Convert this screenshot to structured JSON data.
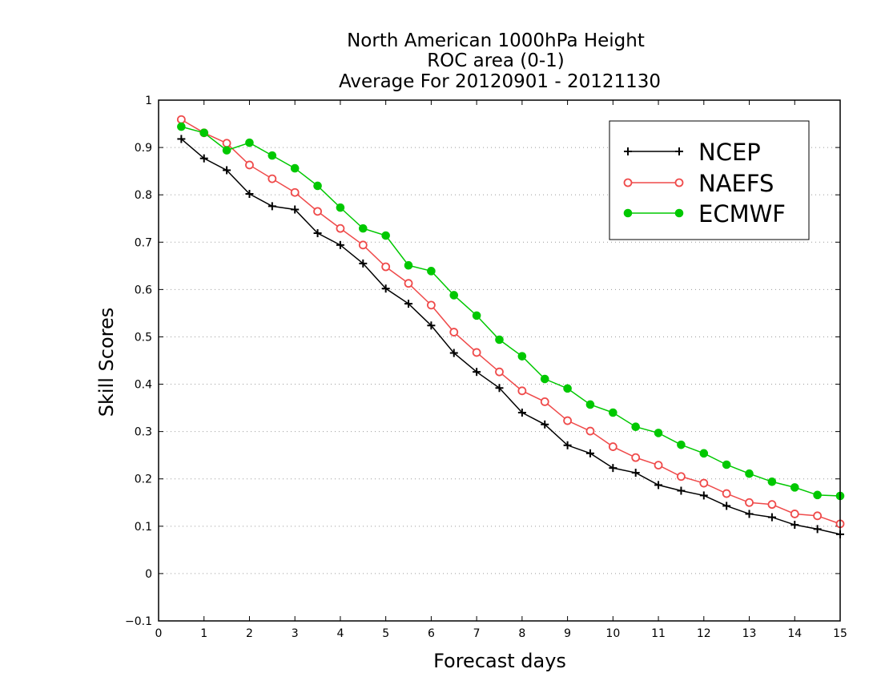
{
  "chart_data": {
    "type": "line",
    "title_lines": [
      "North American 1000hPa Height",
      "ROC area (0-1)",
      "Average For 20120901 - 20121130"
    ],
    "xlabel": "Forecast days",
    "ylabel": "Skill Scores",
    "xlim": [
      0,
      15
    ],
    "ylim": [
      -0.1,
      1
    ],
    "x_ticks": [
      0,
      1,
      2,
      3,
      4,
      5,
      6,
      7,
      8,
      9,
      10,
      11,
      12,
      13,
      14,
      15
    ],
    "y_ticks": [
      -0.1,
      0,
      0.1,
      0.2,
      0.3,
      0.4,
      0.5,
      0.6,
      0.7,
      0.8,
      0.9,
      1
    ],
    "x_tick_labels": [
      "0",
      "1",
      "2",
      "3",
      "4",
      "5",
      "6",
      "7",
      "8",
      "9",
      "10",
      "11",
      "12",
      "13",
      "14",
      "15"
    ],
    "y_tick_labels": [
      "−0.1",
      "0",
      "0.1",
      "0.2",
      "0.3",
      "0.4",
      "0.5",
      "0.6",
      "0.7",
      "0.8",
      "0.9",
      "1"
    ],
    "grid": "horizontal-dotted",
    "legend_position": "top-right",
    "x": [
      0.5,
      1,
      1.5,
      2,
      2.5,
      3,
      3.5,
      4,
      4.5,
      5,
      5.5,
      6,
      6.5,
      7,
      7.5,
      8,
      8.5,
      9,
      9.5,
      10,
      10.5,
      11,
      11.5,
      12,
      12.5,
      13,
      13.5,
      14,
      14.5,
      15
    ],
    "series": [
      {
        "name": "NCEP",
        "color": "#000000",
        "marker": "plus",
        "values": [
          0.918,
          0.877,
          0.852,
          0.802,
          0.776,
          0.769,
          0.719,
          0.694,
          0.655,
          0.602,
          0.57,
          0.524,
          0.466,
          0.426,
          0.392,
          0.34,
          0.315,
          0.271,
          0.254,
          0.223,
          0.213,
          0.187,
          0.175,
          0.165,
          0.143,
          0.126,
          0.119,
          0.103,
          0.094,
          0.083
        ]
      },
      {
        "name": "NAEFS",
        "color": "#ef4a4a",
        "marker": "open-circle",
        "values": [
          0.959,
          0.931,
          0.909,
          0.863,
          0.834,
          0.805,
          0.765,
          0.729,
          0.694,
          0.648,
          0.613,
          0.567,
          0.51,
          0.467,
          0.426,
          0.386,
          0.363,
          0.323,
          0.301,
          0.268,
          0.245,
          0.229,
          0.205,
          0.191,
          0.169,
          0.15,
          0.146,
          0.126,
          0.122,
          0.105
        ]
      },
      {
        "name": "ECMWF",
        "color": "#00c800",
        "marker": "filled-circle",
        "values": [
          0.944,
          0.931,
          0.894,
          0.91,
          0.883,
          0.856,
          0.819,
          0.773,
          0.729,
          0.714,
          0.651,
          0.639,
          0.588,
          0.545,
          0.494,
          0.459,
          0.411,
          0.391,
          0.357,
          0.34,
          0.31,
          0.297,
          0.272,
          0.254,
          0.23,
          0.211,
          0.194,
          0.182,
          0.166,
          0.164
        ]
      }
    ]
  }
}
